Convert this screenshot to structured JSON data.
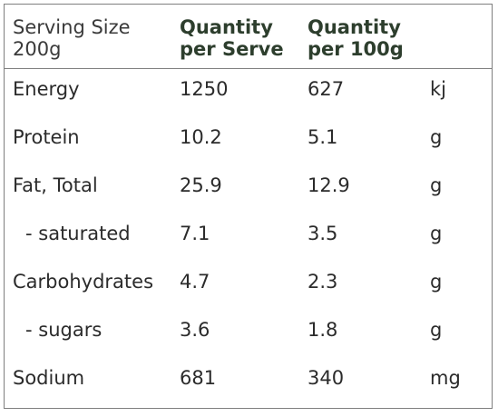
{
  "header": {
    "serving_size_line1": "Serving Size",
    "serving_size_line2": "200g",
    "per_serve_line1": "Quantity",
    "per_serve_line2": "per Serve",
    "per_100g_line1": "Quantity",
    "per_100g_line2": "per 100g"
  },
  "rows": [
    {
      "label": "Energy",
      "per_serve": "1250",
      "per_100g": "627",
      "unit": "kj"
    },
    {
      "label": "Protein",
      "per_serve": "10.2",
      "per_100g": "5.1",
      "unit": "g"
    },
    {
      "label": "Fat, Total",
      "per_serve": "25.9",
      "per_100g": "12.9",
      "unit": "g"
    },
    {
      "label": "- saturated",
      "per_serve": "7.1",
      "per_100g": "3.5",
      "unit": "g"
    },
    {
      "label": "Carbohydrates",
      "per_serve": "4.7",
      "per_100g": "2.3",
      "unit": "g"
    },
    {
      "label": "- sugars",
      "per_serve": "3.6",
      "per_100g": "1.8",
      "unit": "g"
    },
    {
      "label": "Sodium",
      "per_serve": "681",
      "per_100g": "340",
      "unit": "mg"
    }
  ]
}
